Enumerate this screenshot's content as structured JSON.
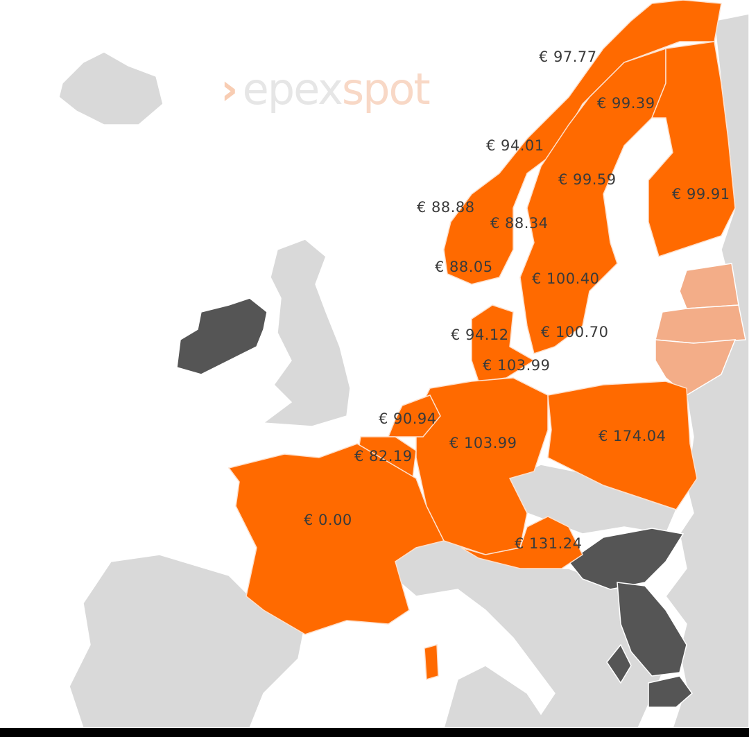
{
  "logo": {
    "part1": "epex",
    "part2": "spot"
  },
  "colors": {
    "market": "#ff6a00",
    "coupled_pending": "#f3ad88",
    "no_data": "#555555",
    "other_land": "#d9d9d9",
    "sea": "#ffffff"
  },
  "prices": [
    {
      "id": "no4",
      "value": "€ 97.77"
    },
    {
      "id": "se1",
      "value": "€ 99.39"
    },
    {
      "id": "no3",
      "value": "€ 94.01"
    },
    {
      "id": "se2",
      "value": "€ 99.59"
    },
    {
      "id": "fi",
      "value": "€ 99.91"
    },
    {
      "id": "no5",
      "value": "€ 88.88"
    },
    {
      "id": "no1",
      "value": "€ 88.34"
    },
    {
      "id": "no2",
      "value": "€ 88.05"
    },
    {
      "id": "se3",
      "value": "€ 100.40"
    },
    {
      "id": "dk1",
      "value": "€ 94.12"
    },
    {
      "id": "se4",
      "value": "€ 100.70"
    },
    {
      "id": "dk2",
      "value": "€ 103.99"
    },
    {
      "id": "nl",
      "value": "€ 90.94"
    },
    {
      "id": "de",
      "value": "€ 103.99"
    },
    {
      "id": "pl",
      "value": "€ 174.04"
    },
    {
      "id": "be",
      "value": "€ 82.19"
    },
    {
      "id": "fr",
      "value": "€ 0.00"
    },
    {
      "id": "at",
      "value": "€ 131.24"
    }
  ]
}
